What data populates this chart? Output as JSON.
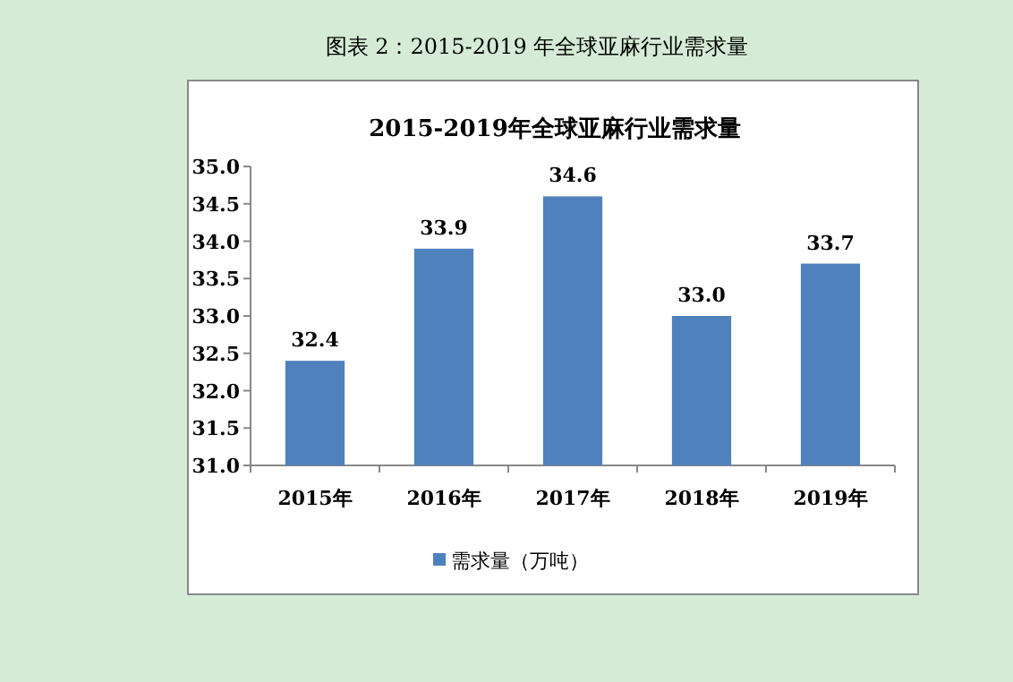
{
  "chart_data": {
    "type": "bar",
    "title": "图表 2：2015-2019 年全球亚麻行业需求量",
    "subtitle": "2015-2019年全球亚麻行业需求量",
    "categories": [
      "2015年",
      "2016年",
      "2017年",
      "2018年",
      "2019年"
    ],
    "series": [
      {
        "name": "需求量（万吨）",
        "color": "#4f81bd",
        "values": [
          32.4,
          33.9,
          34.6,
          33.0,
          33.7
        ],
        "value_labels": [
          "32.4",
          "33.9",
          "34.6",
          "33.0",
          "33.7"
        ]
      }
    ],
    "ylim": [
      31,
      35
    ],
    "yticks": [
      {
        "value": 31,
        "label": "31.0"
      },
      {
        "value": 31.5,
        "label": "31.5"
      },
      {
        "value": 32,
        "label": "32.0"
      },
      {
        "value": 32.5,
        "label": "32.5"
      },
      {
        "value": 33,
        "label": "33.0"
      },
      {
        "value": 33.5,
        "label": "33.5"
      },
      {
        "value": 34,
        "label": "34.0"
      },
      {
        "value": 34.5,
        "label": "34.5"
      },
      {
        "value": 35,
        "label": "35.0"
      }
    ],
    "legend": "bottom"
  }
}
